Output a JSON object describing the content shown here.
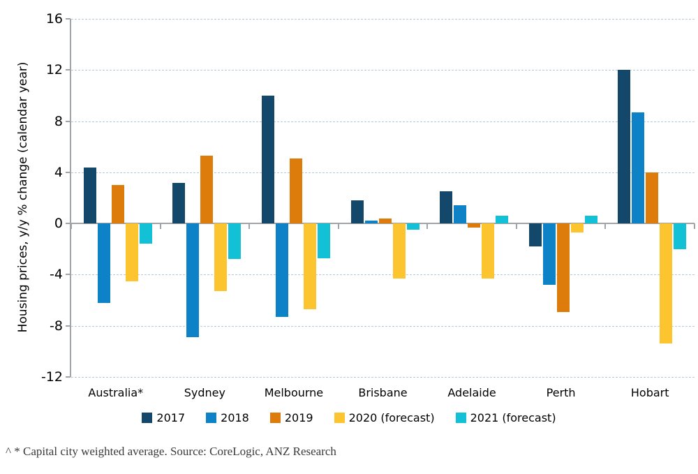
{
  "chart_data": {
    "type": "bar",
    "title": "",
    "xlabel": "",
    "ylabel": "Housing prices, y/y % change (calendar year)",
    "ylim": [
      -12,
      16
    ],
    "yticks": [
      16,
      12,
      8,
      4,
      0,
      -4,
      -8,
      -12
    ],
    "grid": "horizontal dashed gridlines, zero baseline solid",
    "legend_position": "bottom-center",
    "categories": [
      "Australia*",
      "Sydney",
      "Melbourne",
      "Brisbane",
      "Adelaide",
      "Perth",
      "Hobart"
    ],
    "series": [
      {
        "name": "2017",
        "color": "#14486b",
        "values": [
          4.4,
          3.2,
          10.0,
          1.8,
          2.5,
          -1.8,
          12.0
        ]
      },
      {
        "name": "2018",
        "color": "#0e82c6",
        "values": [
          -6.2,
          -8.9,
          -7.3,
          0.2,
          1.4,
          -4.8,
          8.7
        ]
      },
      {
        "name": "2019",
        "color": "#dd7b0b",
        "values": [
          3.0,
          5.3,
          5.1,
          0.4,
          -0.3,
          -6.9,
          4.0
        ]
      },
      {
        "name": "2020 (forecast)",
        "color": "#fcc42e",
        "values": [
          -4.5,
          -5.3,
          -6.7,
          -4.3,
          -4.3,
          -0.7,
          -9.4
        ]
      },
      {
        "name": "2021 (forecast)",
        "color": "#12c1d6",
        "values": [
          -1.6,
          -2.8,
          -2.7,
          -0.5,
          0.6,
          0.6,
          -2.0
        ]
      }
    ]
  },
  "footnote": {
    "text": "^ * Capital city weighted average. Source: CoreLogic, ANZ Research"
  },
  "colors": {
    "background": "#ffffff",
    "gridline": "#b6c9da",
    "axis": "#9fa4a9",
    "tick_text": "#000000",
    "footnote_text": "#3a3a3a"
  }
}
